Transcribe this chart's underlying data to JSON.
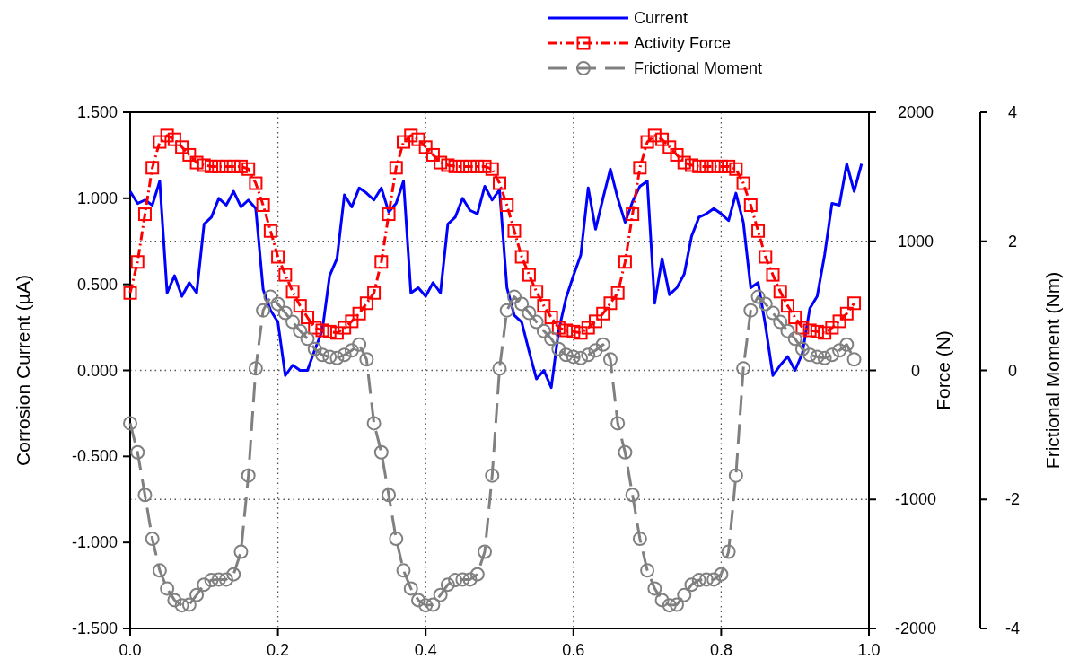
{
  "chart_data": {
    "type": "line",
    "xlabel": null,
    "ylabel": "Corrosion Current (µA)",
    "y2label": "Force (N)",
    "y3label": "Frictional Moment (Nm)",
    "xlim": [
      0,
      1
    ],
    "xticks": [
      {
        "value": 0,
        "label": "0.0"
      },
      0.2,
      0.4,
      0.6,
      0.8,
      {
        "value": 1,
        "label": "1.0"
      }
    ],
    "ylim": [
      -1.5,
      1.5
    ],
    "yticks": [
      {
        "value": -1.5,
        "label": "-1.500"
      },
      {
        "value": -1,
        "label": "-1.000"
      },
      {
        "value": -0.5,
        "label": "-0.500"
      },
      {
        "value": 0,
        "label": "0.000"
      },
      {
        "value": 0.5,
        "label": "0.500"
      },
      {
        "value": 1,
        "label": "1.000"
      },
      {
        "value": 1.5,
        "label": "1.500"
      }
    ],
    "y2lim": [
      -2000,
      2000
    ],
    "y2ticks": [
      -2000,
      -1000,
      0,
      1000,
      2000
    ],
    "y3lim": [
      -4,
      4
    ],
    "y3ticks": [
      -4,
      -2,
      0,
      2,
      4
    ],
    "grid": true,
    "legend": "top right",
    "series": [
      {
        "name": "Current",
        "color": "#0000ff",
        "marker": "none",
        "line_style": "solid",
        "x": [
          0,
          0.01,
          0.02,
          0.03,
          0.04,
          0.05,
          0.06,
          0.07,
          0.08,
          0.09,
          0.1,
          0.11,
          0.12,
          0.13,
          0.14,
          0.15,
          0.16,
          0.17,
          0.18,
          0.19,
          0.2,
          0.21,
          0.22,
          0.23,
          0.24,
          0.25,
          0.26,
          0.27,
          0.28,
          0.29,
          0.3,
          0.31,
          0.32,
          0.33,
          0.34,
          0.35,
          0.36,
          0.37,
          0.38,
          0.39,
          0.4,
          0.41,
          0.42,
          0.43,
          0.44,
          0.45,
          0.46,
          0.47,
          0.48,
          0.49,
          0.5,
          0.51,
          0.52,
          0.53,
          0.54,
          0.55,
          0.56,
          0.57,
          0.58,
          0.59,
          0.6,
          0.61,
          0.62,
          0.63,
          0.64,
          0.65,
          0.66,
          0.67,
          0.68,
          0.69,
          0.7,
          0.71,
          0.72,
          0.73,
          0.74,
          0.75,
          0.76,
          0.77,
          0.78,
          0.79,
          0.8,
          0.81,
          0.82,
          0.83,
          0.84,
          0.85,
          0.86,
          0.87,
          0.88,
          0.89,
          0.9,
          0.91,
          0.92,
          0.93,
          0.94,
          0.95,
          0.96,
          0.97,
          0.98,
          0.99
        ],
        "values": [
          1.04,
          0.97,
          0.99,
          0.96,
          1.1,
          0.45,
          0.55,
          0.43,
          0.51,
          0.45,
          0.85,
          0.89,
          1.0,
          0.96,
          1.04,
          0.95,
          0.99,
          0.94,
          0.47,
          0.35,
          0.28,
          -0.03,
          0.03,
          0.0,
          0.0,
          0.12,
          0.23,
          0.55,
          0.65,
          1.02,
          0.95,
          1.06,
          1.03,
          0.99,
          1.06,
          0.92,
          0.97,
          1.1,
          0.45,
          0.48,
          0.43,
          0.51,
          0.45,
          0.85,
          0.89,
          1.0,
          0.93,
          0.91,
          1.07,
          0.99,
          1.05,
          0.48,
          0.32,
          0.28,
          0.11,
          -0.05,
          0.0,
          -0.1,
          0.23,
          0.42,
          0.55,
          0.67,
          1.06,
          0.82,
          1.0,
          1.17,
          1.0,
          0.86,
          0.98,
          1.07,
          1.1,
          0.39,
          0.65,
          0.44,
          0.48,
          0.56,
          0.78,
          0.89,
          0.91,
          0.94,
          0.91,
          0.87,
          1.03,
          0.86,
          0.48,
          0.51,
          0.26,
          -0.03,
          0.03,
          0.08,
          0.0,
          0.1,
          0.36,
          0.43,
          0.67,
          0.97,
          0.96,
          1.2,
          1.04,
          1.2
        ]
      },
      {
        "name": "Activity Force",
        "color": "#ff0000",
        "marker": "square",
        "line_style": "dashdot",
        "axis": "y2",
        "x": [
          0,
          0.01,
          0.02,
          0.03,
          0.04,
          0.05,
          0.06,
          0.07,
          0.08,
          0.09,
          0.1,
          0.11,
          0.12,
          0.13,
          0.14,
          0.15,
          0.16,
          0.17,
          0.18,
          0.19,
          0.2,
          0.21,
          0.22,
          0.23,
          0.24,
          0.25,
          0.26,
          0.27,
          0.28,
          0.29,
          0.3,
          0.31,
          0.32,
          0.33,
          0.34,
          0.35,
          0.36,
          0.37,
          0.38,
          0.39,
          0.4,
          0.41,
          0.42,
          0.43,
          0.44,
          0.45,
          0.46,
          0.47,
          0.48,
          0.49,
          0.5,
          0.51,
          0.52,
          0.53,
          0.54,
          0.55,
          0.56,
          0.57,
          0.58,
          0.59,
          0.6,
          0.61,
          0.62,
          0.63,
          0.64,
          0.65,
          0.66,
          0.67,
          0.68,
          0.69,
          0.7,
          0.71,
          0.72,
          0.73,
          0.74,
          0.75,
          0.76,
          0.77,
          0.78,
          0.79,
          0.8,
          0.81,
          0.82,
          0.83,
          0.84,
          0.85,
          0.86,
          0.87,
          0.88,
          0.89,
          0.9,
          0.91,
          0.92,
          0.93,
          0.94,
          0.95,
          0.96,
          0.97,
          0.98
        ],
        "values": [
          600,
          840,
          1210,
          1570,
          1770,
          1820,
          1790,
          1730,
          1670,
          1610,
          1590,
          1580,
          1580,
          1580,
          1580,
          1580,
          1560,
          1450,
          1280,
          1080,
          880,
          740,
          610,
          500,
          410,
          330,
          310,
          300,
          290,
          330,
          380,
          440,
          520,
          600,
          840,
          1210,
          1570,
          1770,
          1820,
          1790,
          1730,
          1670,
          1610,
          1590,
          1580,
          1580,
          1580,
          1580,
          1580,
          1560,
          1450,
          1280,
          1080,
          880,
          740,
          610,
          500,
          410,
          330,
          310,
          300,
          290,
          330,
          380,
          440,
          520,
          600,
          840,
          1210,
          1570,
          1770,
          1820,
          1790,
          1730,
          1670,
          1610,
          1590,
          1580,
          1580,
          1580,
          1580,
          1580,
          1560,
          1450,
          1280,
          1080,
          880,
          740,
          610,
          500,
          410,
          330,
          310,
          300,
          290,
          330,
          380,
          440,
          520
        ]
      },
      {
        "name": "Frictional Moment",
        "color": "#808080",
        "marker": "circle",
        "line_style": "dashed",
        "axis": "y3",
        "x": [
          0,
          0.01,
          0.02,
          0.03,
          0.04,
          0.05,
          0.06,
          0.07,
          0.08,
          0.09,
          0.1,
          0.11,
          0.12,
          0.13,
          0.14,
          0.15,
          0.16,
          0.17,
          0.18,
          0.19,
          0.2,
          0.21,
          0.22,
          0.23,
          0.24,
          0.25,
          0.26,
          0.27,
          0.28,
          0.29,
          0.3,
          0.31,
          0.32,
          0.33,
          0.34,
          0.35,
          0.36,
          0.37,
          0.38,
          0.39,
          0.4,
          0.41,
          0.42,
          0.43,
          0.44,
          0.45,
          0.46,
          0.47,
          0.48,
          0.49,
          0.5,
          0.51,
          0.52,
          0.53,
          0.54,
          0.55,
          0.56,
          0.57,
          0.58,
          0.59,
          0.6,
          0.61,
          0.62,
          0.63,
          0.64,
          0.65,
          0.66,
          0.67,
          0.68,
          0.69,
          0.7,
          0.71,
          0.72,
          0.73,
          0.74,
          0.75,
          0.76,
          0.77,
          0.78,
          0.79,
          0.8,
          0.81,
          0.82,
          0.83,
          0.84,
          0.85,
          0.86,
          0.87,
          0.88,
          0.89,
          0.9,
          0.91,
          0.92,
          0.93,
          0.94,
          0.95,
          0.96,
          0.97,
          0.98
        ],
        "values": [
          -0.82,
          -1.27,
          -1.93,
          -2.61,
          -3.1,
          -3.38,
          -3.56,
          -3.64,
          -3.63,
          -3.48,
          -3.32,
          -3.25,
          -3.24,
          -3.24,
          -3.16,
          -2.81,
          -1.63,
          0.03,
          0.93,
          1.14,
          1.03,
          0.89,
          0.75,
          0.61,
          0.49,
          0.33,
          0.24,
          0.21,
          0.19,
          0.24,
          0.31,
          0.4,
          0.17,
          -0.82,
          -1.27,
          -1.93,
          -2.61,
          -3.1,
          -3.38,
          -3.56,
          -3.64,
          -3.63,
          -3.48,
          -3.32,
          -3.25,
          -3.24,
          -3.24,
          -3.16,
          -2.81,
          -1.63,
          0.03,
          0.93,
          1.14,
          1.03,
          0.89,
          0.75,
          0.61,
          0.49,
          0.33,
          0.24,
          0.21,
          0.19,
          0.24,
          0.31,
          0.4,
          0.17,
          -0.82,
          -1.27,
          -1.93,
          -2.61,
          -3.1,
          -3.38,
          -3.56,
          -3.64,
          -3.63,
          -3.48,
          -3.32,
          -3.25,
          -3.24,
          -3.24,
          -3.16,
          -2.81,
          -1.63,
          0.03,
          0.93,
          1.14,
          1.03,
          0.89,
          0.75,
          0.61,
          0.49,
          0.33,
          0.24,
          0.21,
          0.19,
          0.24,
          0.31,
          0.4,
          0.17
        ]
      }
    ]
  }
}
